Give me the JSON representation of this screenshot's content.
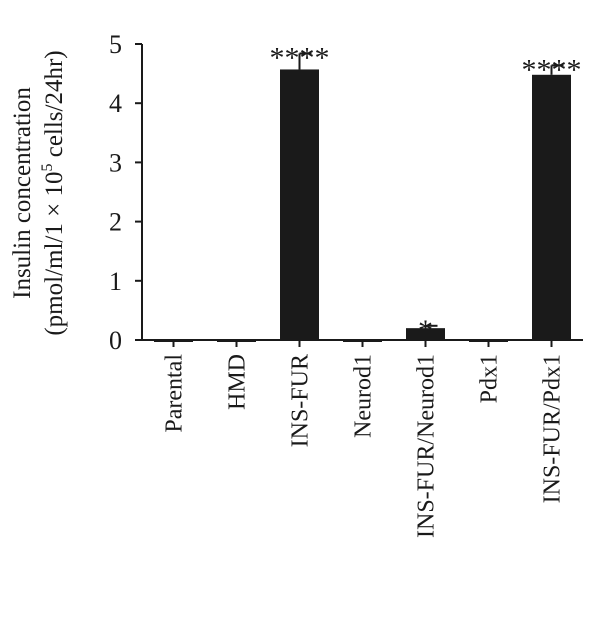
{
  "chart_data": {
    "type": "bar",
    "categories": [
      "Parental",
      "HMD",
      "INS-FUR",
      "Neurod1",
      "INS-FUR/Neurod1",
      "Pdx1",
      "INS-FUR/Pdx1"
    ],
    "values": [
      0.0,
      -0.03,
      4.57,
      0.0,
      0.2,
      0.0,
      4.48
    ],
    "errors": [
      0.0,
      0.0,
      0.27,
      0.0,
      0.04,
      0.0,
      0.16
    ],
    "significance": [
      "",
      "",
      "****",
      "",
      "*",
      "",
      "****"
    ],
    "ylabel_line1": "Insulin concentration",
    "ylabel_line2_prefix": "(pmol/ml/1 × 10",
    "ylabel_line2_sup": "5",
    "ylabel_line2_suffix": " cells/24hr)",
    "yticks": [
      "0",
      "1",
      "2",
      "3",
      "4",
      "5"
    ],
    "ylim": [
      0,
      5
    ],
    "bar_color": "#1a1a1a",
    "grid": false,
    "legend": "none"
  }
}
